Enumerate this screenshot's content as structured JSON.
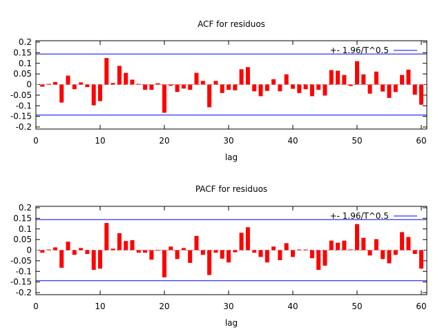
{
  "chart_data": [
    {
      "type": "bar",
      "title": "ACF for residuos",
      "xlabel": "lag",
      "ylabel": "",
      "xlim": [
        0,
        60
      ],
      "ylim": [
        -0.2,
        0.2
      ],
      "xticks": [
        "0",
        "10",
        "20",
        "30",
        "40",
        "50",
        "60"
      ],
      "yticks": [
        "0.2",
        "0.15",
        "0.1",
        "0.05",
        "0",
        "-0.05",
        "-0.1",
        "-0.15",
        "-0.2"
      ],
      "legend": {
        "label": "+- 1.96/T^0.5",
        "placement": "top-right"
      },
      "confidence_band": 0.144,
      "lags": [
        1,
        2,
        3,
        4,
        5,
        6,
        7,
        8,
        9,
        10,
        11,
        12,
        13,
        14,
        15,
        16,
        17,
        18,
        19,
        20,
        21,
        22,
        23,
        24,
        25,
        26,
        27,
        28,
        29,
        30,
        31,
        32,
        33,
        34,
        35,
        36,
        37,
        38,
        39,
        40,
        41,
        42,
        43,
        44,
        45,
        46,
        47,
        48,
        49,
        50,
        51,
        52,
        53,
        54,
        55,
        56,
        57,
        58,
        59,
        60
      ],
      "values": [
        -0.01,
        0.003,
        0.012,
        -0.085,
        0.042,
        -0.022,
        0.01,
        -0.012,
        -0.098,
        -0.078,
        0.125,
        0.007,
        0.088,
        0.055,
        0.023,
        0.003,
        -0.025,
        -0.025,
        0.006,
        -0.133,
        -0.006,
        -0.035,
        -0.019,
        -0.025,
        0.055,
        0.017,
        -0.107,
        0.017,
        -0.04,
        -0.025,
        -0.027,
        0.072,
        0.082,
        -0.032,
        -0.055,
        -0.03,
        0.025,
        -0.032,
        0.048,
        -0.02,
        -0.04,
        -0.022,
        -0.055,
        -0.025,
        -0.052,
        0.068,
        0.065,
        0.045,
        -0.007,
        0.11,
        0.048,
        -0.043,
        0.061,
        -0.033,
        -0.063,
        -0.035,
        0.045,
        0.07,
        -0.048,
        -0.095
      ],
      "colors": {
        "bars": "#ff0000",
        "band": "#0000ff"
      }
    },
    {
      "type": "bar",
      "title": "PACF for residuos",
      "xlabel": "lag",
      "ylabel": "",
      "xlim": [
        0,
        60
      ],
      "ylim": [
        -0.2,
        0.2
      ],
      "xticks": [
        "0",
        "10",
        "20",
        "30",
        "40",
        "50",
        "60"
      ],
      "yticks": [
        "0.2",
        "0.15",
        "0.1",
        "0.05",
        "0",
        "-0.05",
        "-0.1",
        "-0.15",
        "-0.2"
      ],
      "legend": {
        "label": "+- 1.96/T^0.5",
        "placement": "top-right"
      },
      "confidence_band": 0.144,
      "lags": [
        1,
        2,
        3,
        4,
        5,
        6,
        7,
        8,
        9,
        10,
        11,
        12,
        13,
        14,
        15,
        16,
        17,
        18,
        19,
        20,
        21,
        22,
        23,
        24,
        25,
        26,
        27,
        28,
        29,
        30,
        31,
        32,
        33,
        34,
        35,
        36,
        37,
        38,
        39,
        40,
        41,
        42,
        43,
        44,
        45,
        46,
        47,
        48,
        49,
        50,
        51,
        52,
        53,
        54,
        55,
        56,
        57,
        58,
        59,
        60
      ],
      "values": [
        -0.012,
        0.003,
        0.013,
        -0.083,
        0.04,
        -0.022,
        0.01,
        -0.018,
        -0.093,
        -0.087,
        0.128,
        0.007,
        0.08,
        0.043,
        0.047,
        -0.012,
        -0.012,
        -0.045,
        0.001,
        -0.128,
        0.017,
        -0.042,
        0.01,
        -0.06,
        0.067,
        -0.022,
        -0.117,
        -0.012,
        -0.04,
        -0.058,
        -0.01,
        0.082,
        0.108,
        -0.012,
        -0.032,
        -0.058,
        0.017,
        -0.047,
        0.033,
        -0.032,
        0.003,
        0.003,
        -0.038,
        -0.093,
        -0.073,
        0.045,
        0.035,
        0.045,
        0.003,
        0.123,
        0.058,
        -0.025,
        0.052,
        -0.042,
        -0.062,
        -0.022,
        0.085,
        0.062,
        -0.018,
        -0.087
      ],
      "colors": {
        "bars": "#ff0000",
        "band": "#0000ff"
      }
    }
  ]
}
